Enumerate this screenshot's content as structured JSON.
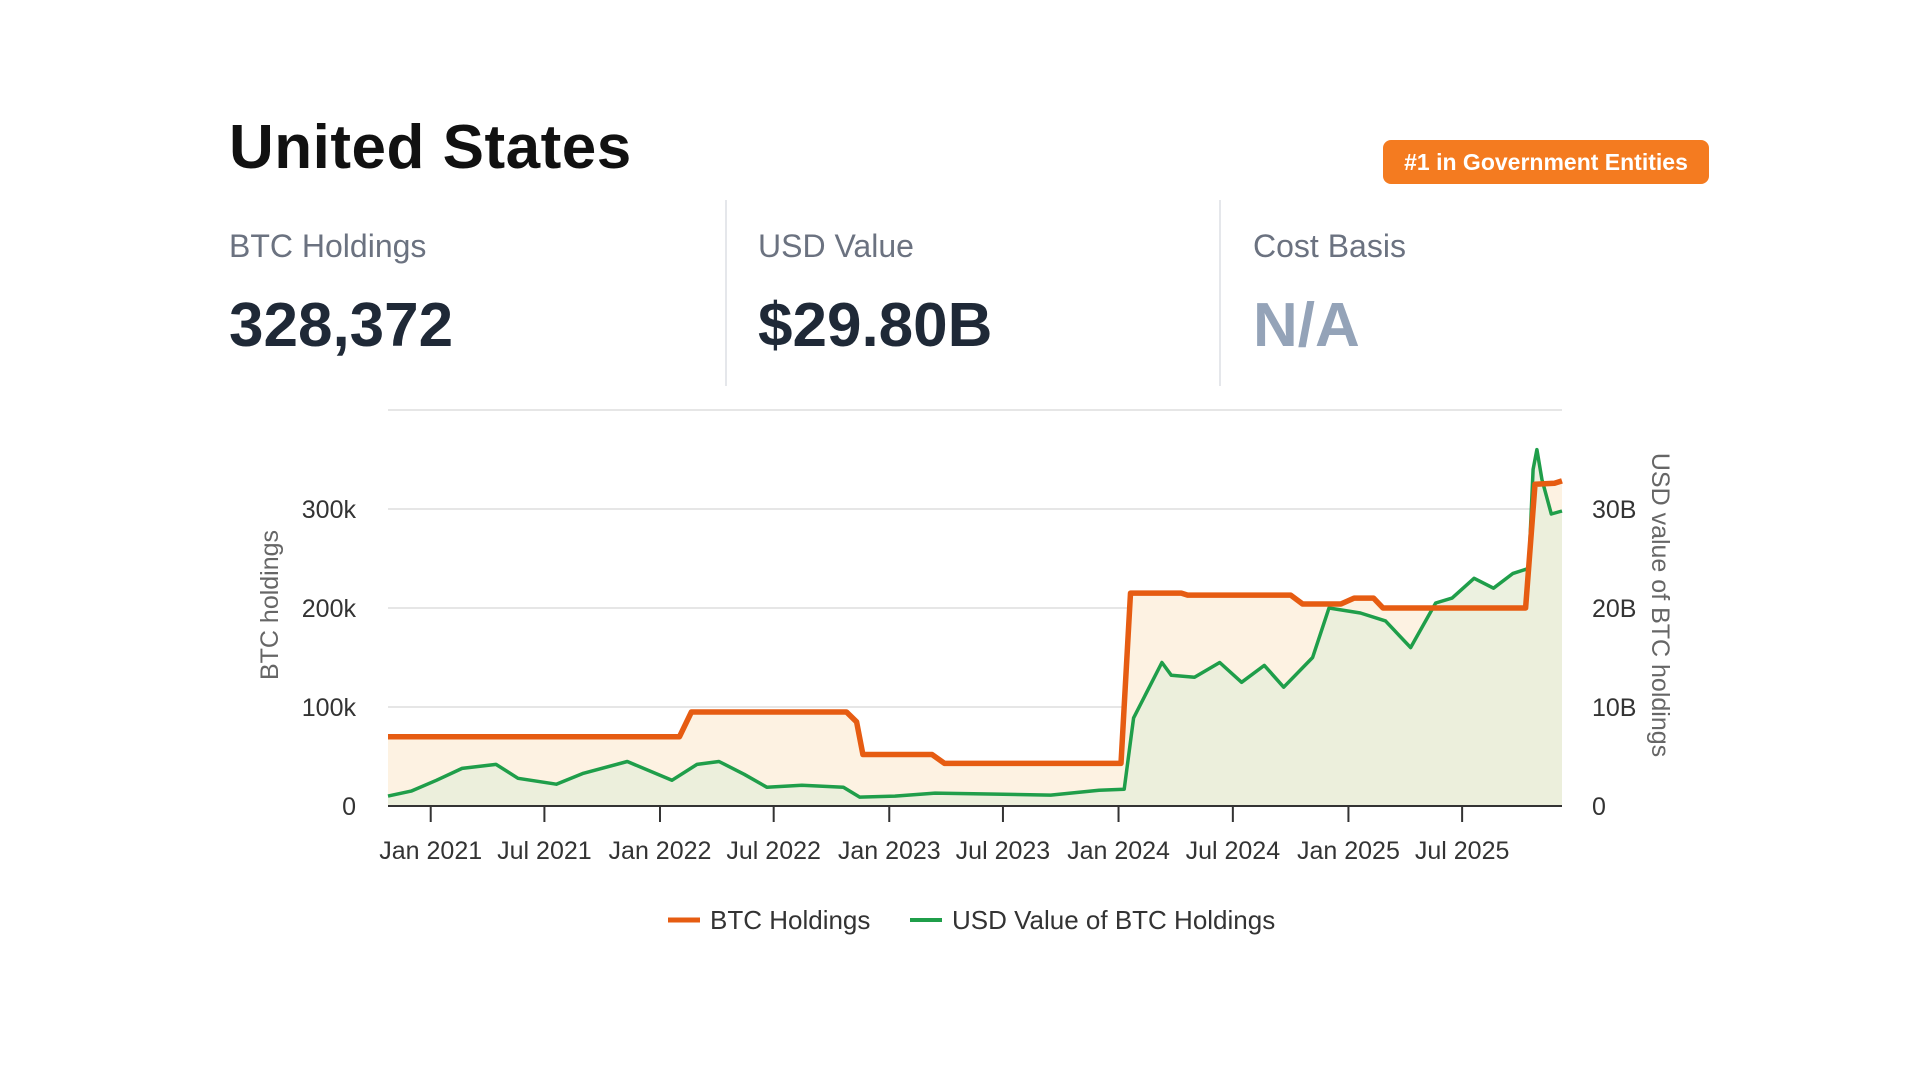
{
  "header": {
    "title": "United States",
    "badge": "#1 in Government Entities"
  },
  "stats": [
    {
      "label": "BTC Holdings",
      "value": "328,372"
    },
    {
      "label": "USD Value",
      "value": "$29.80B"
    },
    {
      "label": "Cost Basis",
      "value": "N/A"
    }
  ],
  "colors": {
    "btc_line": "#e65c12",
    "btc_fill": "#fdf2e2",
    "usd_line": "#1f9e4a",
    "usd_fill": "#e9eedb",
    "badge": "#f47b20",
    "grid": "#dddddd"
  },
  "chart_data": {
    "type": "line",
    "x_range": [
      "2020-10-25",
      "2025-12-07"
    ],
    "x_tick_labels": [
      "Jan 2021",
      "Jul 2021",
      "Jan 2022",
      "Jul 2022",
      "Jan 2023",
      "Jul 2023",
      "Jan 2024",
      "Jul 2024",
      "Jan 2025",
      "Jul 2025"
    ],
    "y_left": {
      "label": "BTC holdings",
      "ticks": [
        "0",
        "100k",
        "200k",
        "300k"
      ],
      "range": [
        0,
        400000
      ]
    },
    "y_right": {
      "label": "USD value of BTC holdings",
      "ticks": [
        "0",
        "10B",
        "20B",
        "30B"
      ],
      "range": [
        0,
        40000000000
      ]
    },
    "grid": true,
    "legend_position": "bottom",
    "series": [
      {
        "name": "BTC Holdings",
        "axis": "left",
        "points": [
          [
            "2020-10-25",
            70000
          ],
          [
            "2022-02-01",
            70000
          ],
          [
            "2022-02-20",
            95000
          ],
          [
            "2022-10-25",
            95000
          ],
          [
            "2022-11-10",
            85000
          ],
          [
            "2022-11-20",
            52000
          ],
          [
            "2023-03-10",
            52000
          ],
          [
            "2023-03-30",
            43000
          ],
          [
            "2024-01-05",
            43000
          ],
          [
            "2024-01-20",
            215000
          ],
          [
            "2024-04-10",
            215000
          ],
          [
            "2024-04-20",
            213000
          ],
          [
            "2024-10-01",
            213000
          ],
          [
            "2024-10-20",
            204000
          ],
          [
            "2024-12-20",
            204000
          ],
          [
            "2025-01-10",
            210000
          ],
          [
            "2025-02-10",
            210000
          ],
          [
            "2025-02-25",
            200000
          ],
          [
            "2025-10-10",
            200000
          ],
          [
            "2025-10-25",
            325000
          ],
          [
            "2025-11-25",
            326000
          ],
          [
            "2025-12-07",
            328372
          ]
        ]
      },
      {
        "name": "USD Value of BTC Holdings",
        "axis": "right",
        "points": [
          [
            "2020-10-25",
            1000000000
          ],
          [
            "2020-12-01",
            1500000000
          ],
          [
            "2021-01-10",
            2600000000
          ],
          [
            "2021-02-20",
            3800000000
          ],
          [
            "2021-04-15",
            4200000000
          ],
          [
            "2021-05-20",
            2800000000
          ],
          [
            "2021-07-20",
            2200000000
          ],
          [
            "2021-09-01",
            3300000000
          ],
          [
            "2021-11-10",
            4500000000
          ],
          [
            "2022-01-20",
            2600000000
          ],
          [
            "2022-03-01",
            4200000000
          ],
          [
            "2022-04-05",
            4500000000
          ],
          [
            "2022-05-15",
            3200000000
          ],
          [
            "2022-06-20",
            1900000000
          ],
          [
            "2022-08-15",
            2100000000
          ],
          [
            "2022-10-20",
            1900000000
          ],
          [
            "2022-11-15",
            900000000
          ],
          [
            "2023-01-10",
            1000000000
          ],
          [
            "2023-03-15",
            1300000000
          ],
          [
            "2023-06-20",
            1200000000
          ],
          [
            "2023-09-15",
            1100000000
          ],
          [
            "2023-12-01",
            1600000000
          ],
          [
            "2024-01-10",
            1700000000
          ],
          [
            "2024-01-25",
            8900000000
          ],
          [
            "2024-03-10",
            14500000000
          ],
          [
            "2024-03-25",
            13200000000
          ],
          [
            "2024-05-01",
            13000000000
          ],
          [
            "2024-06-10",
            14500000000
          ],
          [
            "2024-07-15",
            12500000000
          ],
          [
            "2024-08-20",
            14200000000
          ],
          [
            "2024-09-20",
            12000000000
          ],
          [
            "2024-11-05",
            15000000000
          ],
          [
            "2024-12-01",
            20000000000
          ],
          [
            "2025-01-20",
            19500000000
          ],
          [
            "2025-03-01",
            18700000000
          ],
          [
            "2025-04-10",
            16000000000
          ],
          [
            "2025-05-20",
            20500000000
          ],
          [
            "2025-06-15",
            21000000000
          ],
          [
            "2025-07-20",
            23000000000
          ],
          [
            "2025-08-20",
            22000000000
          ],
          [
            "2025-09-20",
            23500000000
          ],
          [
            "2025-10-15",
            24000000000
          ],
          [
            "2025-10-22",
            34000000000
          ],
          [
            "2025-10-28",
            36000000000
          ],
          [
            "2025-11-05",
            33000000000
          ],
          [
            "2025-11-20",
            29500000000
          ],
          [
            "2025-12-07",
            29800000000
          ]
        ]
      }
    ]
  }
}
